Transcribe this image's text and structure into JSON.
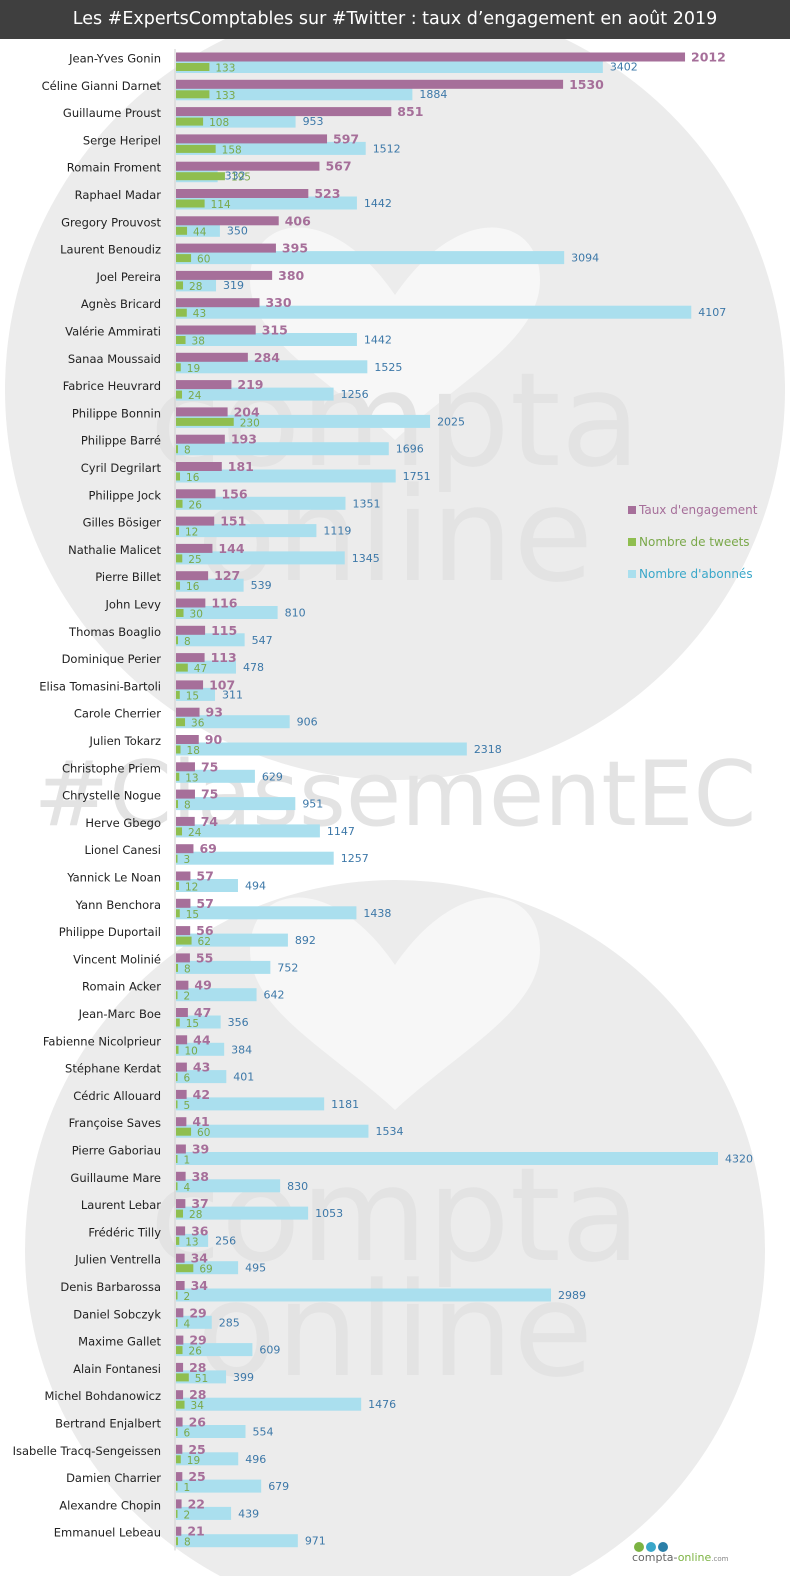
{
  "title": "Les #ExpertsComptables sur #Twitter : taux d’engagement en août 2019",
  "colors": {
    "engagement": "#a66f9a",
    "tweets": "#8fbe4f",
    "abonnes": "#aadfee",
    "engagement_label": "#a66f9a",
    "tweets_label": "#7aa84a",
    "abonnes_label": "#3d78a8"
  },
  "watermark": {
    "text1": "compta",
    "text2": "online",
    "hashtag": "#ClassementEC"
  },
  "logo": {
    "main": "compta-",
    "accent": "online",
    "suffix": ".com"
  },
  "chart_data": {
    "type": "bar",
    "orientation": "horizontal",
    "title": "Les #ExpertsComptables sur #Twitter : taux d’engagement en août 2019",
    "legend_position": "right",
    "categories": [
      "Jean-Yves Gonin",
      "Céline Gianni Darnet",
      "Guillaume Proust",
      "Serge Heripel",
      "Romain Froment",
      "Raphael Madar",
      "Gregory Prouvost",
      "Laurent Benoudiz",
      "Joel Pereira",
      "Agnès Bricard",
      "Valérie Ammirati",
      "Sanaa Moussaid",
      "Fabrice Heuvrard",
      "Philippe Bonnin",
      "Philippe Barré",
      "Cyril Degrilart",
      "Philippe Jock",
      "Gilles Bösiger",
      "Nathalie Malicet",
      "Pierre Billet",
      "John Levy",
      "Thomas Boaglio",
      "Dominique Perier",
      "Elisa Tomasini-Bartoli",
      "Carole Cherrier",
      "Julien Tokarz",
      "Christophe Priem",
      "Chrystelle Nogue",
      "Herve Gbego",
      "Lionel Canesi",
      "Yannick Le Noan",
      "Yann Benchora",
      "Philippe Duportail",
      "Vincent Molinié",
      "Romain Acker",
      "Jean-Marc Boe",
      "Fabienne Nicolprieur",
      "Stéphane Kerdat",
      "Cédric Allouard",
      "Françoise Saves",
      "Pierre Gaboriau",
      "Guillaume Mare",
      "Laurent Lebar",
      "Frédéric Tilly",
      "Julien Ventrella",
      "Denis Barbarossa",
      "Daniel Sobczyk",
      "Maxime Gallet",
      "Alain Fontanesi",
      "Michel Bohdanowicz",
      "Bertrand Enjalbert",
      "Isabelle Tracq-Sengeissen",
      "Damien Charrier",
      "Alexandre Chopin",
      "Emmanuel Lebeau"
    ],
    "series": [
      {
        "name": "Taux d'engagement",
        "values": [
          2012,
          1530,
          851,
          597,
          567,
          523,
          406,
          395,
          380,
          330,
          315,
          284,
          219,
          204,
          193,
          181,
          156,
          151,
          144,
          127,
          116,
          115,
          113,
          107,
          93,
          90,
          75,
          75,
          74,
          69,
          57,
          57,
          56,
          55,
          49,
          47,
          44,
          43,
          42,
          41,
          39,
          38,
          37,
          36,
          34,
          34,
          29,
          29,
          28,
          28,
          26,
          25,
          25,
          22,
          21
        ]
      },
      {
        "name": "Nombre de tweets",
        "values": [
          133,
          133,
          108,
          158,
          195,
          114,
          44,
          60,
          28,
          43,
          38,
          19,
          24,
          230,
          8,
          16,
          26,
          12,
          25,
          16,
          30,
          8,
          47,
          15,
          36,
          18,
          13,
          8,
          24,
          3,
          12,
          15,
          62,
          8,
          2,
          15,
          10,
          6,
          5,
          60,
          1,
          4,
          28,
          13,
          69,
          2,
          4,
          26,
          51,
          34,
          6,
          19,
          1,
          2,
          8
        ]
      },
      {
        "name": "Nombre d'abonnés",
        "values": [
          3402,
          1884,
          953,
          1512,
          332,
          1442,
          350,
          3094,
          319,
          4107,
          1442,
          1525,
          1256,
          2025,
          1696,
          1751,
          1351,
          1119,
          1345,
          539,
          810,
          547,
          478,
          311,
          906,
          2318,
          629,
          951,
          1147,
          1257,
          494,
          1438,
          892,
          752,
          642,
          356,
          384,
          401,
          1181,
          1534,
          4320,
          830,
          1053,
          256,
          495,
          2989,
          285,
          609,
          399,
          1476,
          554,
          496,
          679,
          439,
          971
        ]
      }
    ]
  }
}
